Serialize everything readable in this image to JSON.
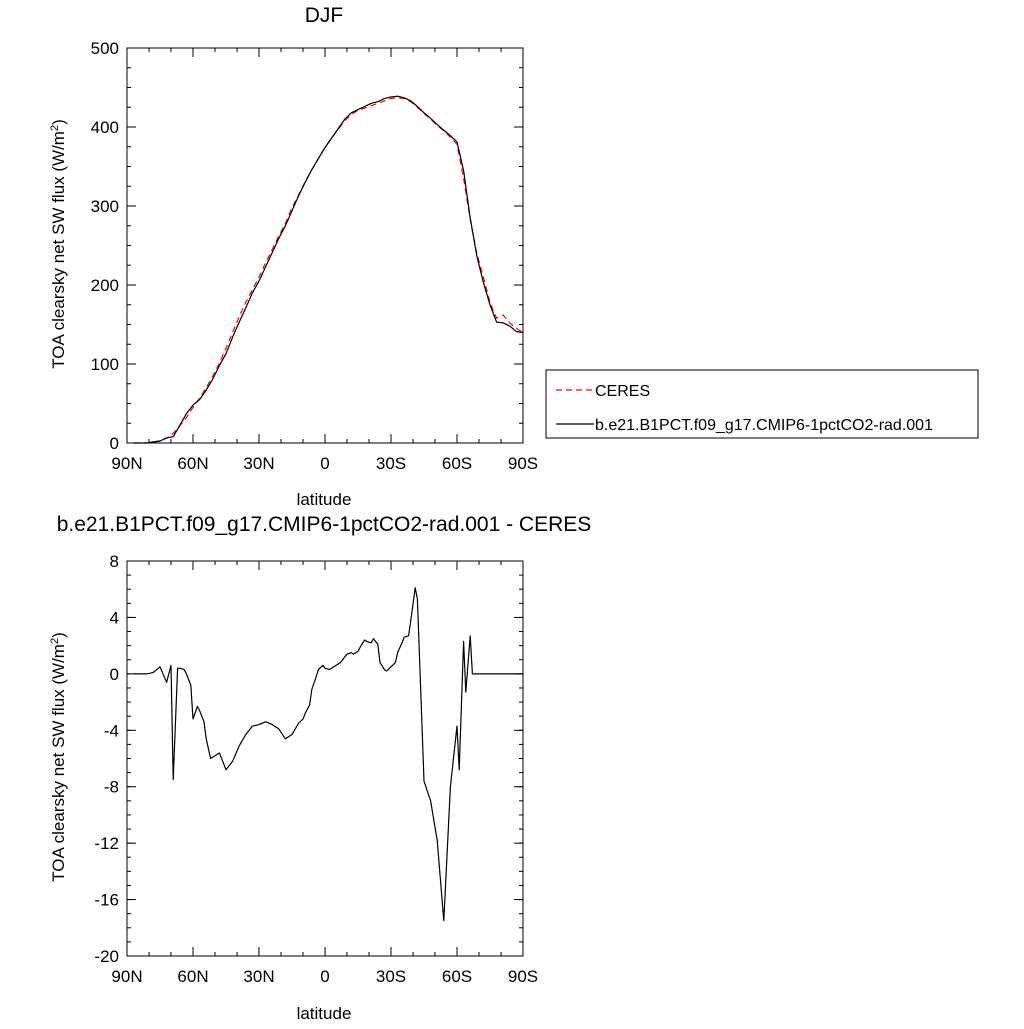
{
  "chart_data": [
    {
      "type": "line",
      "title": "DJF",
      "xlabel": "latitude",
      "ylabel_main": "TOA clearsky net SW flux (W/m",
      "ylabel_sup": "2",
      "ylabel_close": ")",
      "xlim": [
        90,
        -90
      ],
      "ylim": [
        0,
        500
      ],
      "x_ticks": [
        {
          "value": 90,
          "label": "90N"
        },
        {
          "value": 60,
          "label": "60N"
        },
        {
          "value": 30,
          "label": "30N"
        },
        {
          "value": 0,
          "label": "0"
        },
        {
          "value": -30,
          "label": "30S"
        },
        {
          "value": -60,
          "label": "60S"
        },
        {
          "value": -90,
          "label": "90S"
        }
      ],
      "y_ticks": [
        0,
        100,
        200,
        300,
        400,
        500
      ],
      "legend_position": "right",
      "series": [
        {
          "name": "CERES",
          "color": "#ff0000",
          "dash": "dashed",
          "x": [
            87,
            84,
            81,
            78,
            75,
            72,
            69,
            66,
            63,
            60,
            57,
            54,
            51,
            48,
            45,
            42,
            39,
            36,
            33,
            30,
            27,
            24,
            21,
            18,
            15,
            12,
            9,
            6,
            3,
            0,
            -3,
            -6,
            -9,
            -12,
            -15,
            -18,
            -21,
            -24,
            -27,
            -30,
            -33,
            -36,
            -39,
            -42,
            -45,
            -48,
            -51,
            -54,
            -57,
            -60,
            -63,
            -66,
            -69,
            -72,
            -75,
            -78,
            -81,
            -84,
            -87,
            -90
          ],
          "y": [
            0,
            0,
            0,
            1,
            3,
            6,
            12,
            22,
            32,
            45,
            57,
            70,
            85,
            101,
            120,
            140,
            160,
            178,
            194,
            210,
            228,
            245,
            262,
            278,
            298,
            314,
            331,
            346,
            360,
            374,
            386,
            397,
            408,
            416,
            421,
            424,
            427,
            430,
            433,
            436,
            437,
            436,
            432,
            425,
            417,
            410,
            402,
            395,
            387,
            378,
            335,
            283,
            240,
            210,
            178,
            158,
            162,
            152,
            145,
            140
          ]
        },
        {
          "name": "b.e21.B1PCT.f09_g17.CMIP6-1pctCO2-rad.001",
          "color": "#000000",
          "dash": "solid",
          "x": [
            87,
            84,
            81,
            78,
            75,
            72,
            69,
            66,
            63,
            60,
            57,
            54,
            51,
            48,
            45,
            42,
            39,
            36,
            33,
            30,
            27,
            24,
            21,
            18,
            15,
            12,
            9,
            6,
            3,
            0,
            -3,
            -6,
            -9,
            -12,
            -15,
            -18,
            -21,
            -24,
            -27,
            -30,
            -33,
            -36,
            -39,
            -42,
            -45,
            -48,
            -51,
            -54,
            -57,
            -60,
            -63,
            -66,
            -69,
            -72,
            -75,
            -78,
            -81,
            -84,
            -87,
            -90
          ],
          "y": [
            0,
            0,
            0,
            1.4,
            2.4,
            6.6,
            8,
            22.4,
            37,
            48,
            55,
            67,
            81,
            98,
            113,
            134,
            153,
            171,
            190,
            205,
            223,
            241,
            259,
            275,
            294,
            313,
            330,
            346,
            360,
            374,
            386,
            398,
            410,
            418,
            422,
            426,
            430,
            432,
            436,
            438,
            439,
            437,
            433,
            426,
            418,
            411,
            403,
            396,
            389,
            381,
            345,
            285,
            237,
            203,
            175,
            153,
            152,
            148,
            141,
            140
          ]
        }
      ]
    },
    {
      "type": "line",
      "title": "b.e21.B1PCT.f09_g17.CMIP6-1pctCO2-rad.001 - CERES",
      "xlabel": "latitude",
      "ylabel_main": "TOA clearsky net SW flux (W/m",
      "ylabel_sup": "2",
      "ylabel_close": ")",
      "xlim": [
        90,
        -90
      ],
      "ylim": [
        -20,
        8
      ],
      "x_ticks": [
        {
          "value": 90,
          "label": "90N"
        },
        {
          "value": 60,
          "label": "60N"
        },
        {
          "value": 30,
          "label": "30N"
        },
        {
          "value": 0,
          "label": "0"
        },
        {
          "value": -30,
          "label": "30S"
        },
        {
          "value": -60,
          "label": "60S"
        },
        {
          "value": -90,
          "label": "90S"
        }
      ],
      "y_ticks": [
        -20,
        -16,
        -12,
        -8,
        -4,
        0,
        4,
        8
      ],
      "series": [
        {
          "color": "#000000",
          "dash": "solid",
          "x": [
            87,
            84,
            81,
            78,
            75,
            72,
            70,
            69,
            67,
            66,
            64,
            63,
            61,
            60,
            58,
            57,
            55,
            54,
            52,
            51,
            48,
            45,
            42,
            39,
            36,
            33,
            30,
            27,
            24,
            21,
            18,
            15,
            12,
            10,
            9,
            7,
            6,
            4,
            3,
            1,
            0,
            -2,
            -3,
            -4,
            -6,
            -7,
            -9,
            -10,
            -12,
            -13,
            -15,
            -16,
            -18,
            -19,
            -21,
            -22,
            -24,
            -25,
            -27,
            -28,
            -30,
            -32,
            -33,
            -35,
            -36,
            -38,
            -39,
            -41,
            -42,
            -45,
            -48,
            -51,
            -54,
            -57,
            -60,
            -61,
            -63,
            -64,
            -66,
            -67,
            -69,
            -70,
            -72,
            -73,
            -74,
            -75,
            -76,
            -77,
            -78,
            -79,
            -80,
            -81,
            -82,
            -83,
            -84,
            -85,
            -86,
            -87,
            -88,
            -89,
            -90
          ],
          "y": [
            0,
            0,
            0,
            0.1,
            0.5,
            -0.6,
            0.6,
            -7.5,
            0.4,
            0.4,
            0.3,
            0,
            -0.8,
            -3.2,
            -2.3,
            -2.6,
            -3.4,
            -4.6,
            -6,
            -5.9,
            -5.6,
            -6.8,
            -6.2,
            -5.1,
            -4.3,
            -3.7,
            -3.6,
            -3.4,
            -3.6,
            -3.9,
            -4.6,
            -4.3,
            -3.5,
            -3.2,
            -2.8,
            -2.2,
            -1.1,
            -0.2,
            0.3,
            0.6,
            0.4,
            0.3,
            0.4,
            0.5,
            0.7,
            0.8,
            1.2,
            1.4,
            1.5,
            1.4,
            1.6,
            1.9,
            2.4,
            2.3,
            2.2,
            2.5,
            2.1,
            0.8,
            0.3,
            0.2,
            0.5,
            0.8,
            1.5,
            2.2,
            2.6,
            2.7,
            3.8,
            6.1,
            5.3,
            -7.6,
            -9,
            -11.8,
            -17.5,
            -8,
            -3.7,
            -6.8,
            2.3,
            -1.3,
            2.7,
            0,
            0,
            0,
            0,
            0,
            0,
            0,
            0,
            0,
            0,
            0,
            0,
            0,
            0,
            0,
            0,
            0,
            0,
            0,
            0,
            0,
            0
          ]
        }
      ]
    }
  ]
}
